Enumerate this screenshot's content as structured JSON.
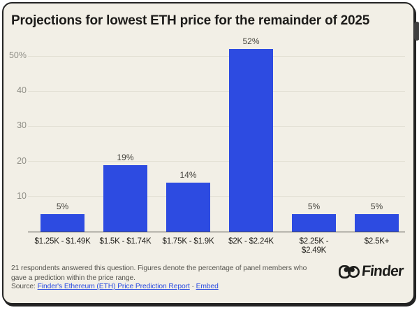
{
  "title": "Projections for lowest ETH price for the remainder of 2025",
  "chart_data": {
    "type": "bar",
    "title": "Projections for lowest ETH price for the remainder of 2025",
    "categories": [
      "$1.25K - $1.49K",
      "$1.5K - $1.74K",
      "$1.75K - $1.9K",
      "$2K - $2.24K",
      "$2.25K -\n$2.49K",
      "$2.5K+"
    ],
    "values": [
      5,
      19,
      14,
      52,
      5,
      5
    ],
    "value_labels": [
      "5%",
      "19%",
      "14%",
      "52%",
      "5%",
      "5%"
    ],
    "y_ticks": [
      "50%",
      "40",
      "30",
      "20",
      "10"
    ],
    "y_tick_values": [
      50,
      40,
      30,
      20,
      10
    ],
    "ylim": [
      0,
      52
    ],
    "xlabel": "",
    "ylabel": "",
    "grid": true,
    "legend": false,
    "bar_color": "#2d4be1"
  },
  "footer": {
    "note": "21 respondents answered this question. Figures denote the percentage of panel members who gave a prediction within the price range.",
    "source_label": "Source: ",
    "source_link": "Finder's Ethereum (ETH) Price Prediction Report",
    "separator": " · ",
    "embed_link": "Embed"
  },
  "logo": {
    "text": "Finder"
  },
  "colors": {
    "card_background": "#f2efe6",
    "bar": "#2d4be1",
    "link": "#2b4ce0",
    "border": "#232323"
  }
}
